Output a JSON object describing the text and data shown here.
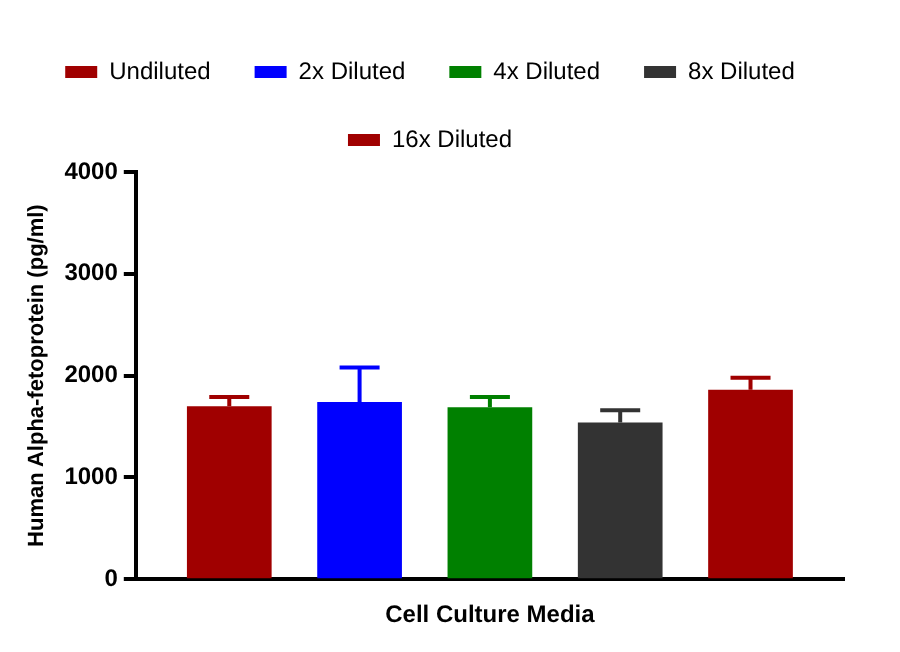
{
  "chart_data": {
    "type": "bar",
    "categories": [
      "Cell Culture Media"
    ],
    "ylabel": "Human Alpha-fetoprotein (pg/ml)",
    "ylim": [
      0,
      4000
    ],
    "yticks": [
      0,
      1000,
      2000,
      3000,
      4000
    ],
    "grid": false,
    "legend": "top",
    "series": [
      {
        "name": "Undiluted",
        "color": "#a00000",
        "values": [
          1700
        ],
        "errors": [
          [
            1700,
            1790
          ]
        ]
      },
      {
        "name": "2x Diluted",
        "color": "#0000ff",
        "values": [
          1740
        ],
        "errors": [
          [
            1740,
            2080
          ]
        ]
      },
      {
        "name": "4x Diluted",
        "color": "#008000",
        "values": [
          1690
        ],
        "errors": [
          [
            1690,
            1790
          ]
        ]
      },
      {
        "name": "8x Diluted",
        "color": "#333333",
        "values": [
          1540
        ],
        "errors": [
          [
            1540,
            1660
          ]
        ]
      },
      {
        "name": "16x Diluted",
        "color": "#a00000",
        "values": [
          1860
        ],
        "errors": [
          [
            1860,
            1980
          ]
        ]
      }
    ]
  }
}
